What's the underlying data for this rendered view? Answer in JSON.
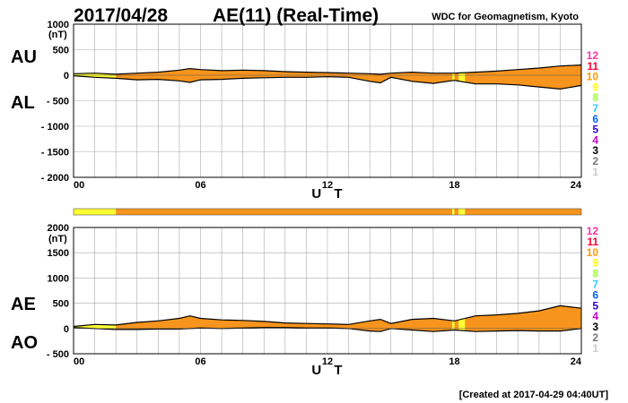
{
  "header": {
    "date": "2017/04/28",
    "title": "AE(11) (Real-Time)",
    "source": "WDC for Geomagnetism, Kyoto"
  },
  "footer": {
    "created": "[Created at 2017-04-29 04:40UT]"
  },
  "colors": {
    "fill_main": "#f7941d",
    "fill_quality10": "#ffff33",
    "outline": "#000000",
    "grid": "#aaaaaa"
  },
  "legend": [
    {
      "label": "12",
      "color": "#ff33aa"
    },
    {
      "label": "11",
      "color": "#ff0033"
    },
    {
      "label": "10",
      "color": "#ff9900"
    },
    {
      "label": "9",
      "color": "#ffff00"
    },
    {
      "label": "8",
      "color": "#99ff33"
    },
    {
      "label": "7",
      "color": "#33ccff"
    },
    {
      "label": "6",
      "color": "#0066ff"
    },
    {
      "label": "5",
      "color": "#3300cc"
    },
    {
      "label": "4",
      "color": "#cc00cc"
    },
    {
      "label": "3",
      "color": "#000000"
    },
    {
      "label": "2",
      "color": "#777777"
    },
    {
      "label": "1",
      "color": "#cccccc"
    }
  ],
  "quality_bar": {
    "segments": [
      {
        "start": 0,
        "end": 2.0,
        "level": "10"
      },
      {
        "start": 2.0,
        "end": 17.9,
        "level": "11"
      },
      {
        "start": 17.9,
        "end": 18.0,
        "level": "10"
      },
      {
        "start": 18.0,
        "end": 18.2,
        "level": "11"
      },
      {
        "start": 18.2,
        "end": 18.5,
        "level": "10"
      },
      {
        "start": 18.5,
        "end": 24.0,
        "level": "11"
      }
    ]
  },
  "chart_data": [
    {
      "type": "area",
      "name": "AU/AL",
      "upper_label": "AU",
      "lower_label": "AL",
      "unit_label": "(nT)",
      "xlabel": "U T",
      "xlim": [
        0,
        24
      ],
      "ylim": [
        -2000,
        1000
      ],
      "yticks": [
        1000,
        500,
        0,
        -500,
        -1000,
        -1500,
        -2000
      ],
      "ytick_labels": [
        "1000",
        "500",
        "0",
        "- 500",
        "- 1000",
        "- 1500",
        "- 2000"
      ],
      "xticks": [
        0,
        6,
        12,
        18,
        24
      ],
      "xtick_labels": [
        "00",
        "06",
        "12",
        "18",
        "24"
      ],
      "quality10_ranges": [
        [
          0,
          2.0
        ],
        [
          17.9,
          18.0
        ],
        [
          18.2,
          18.5
        ]
      ],
      "x": [
        0,
        1,
        2,
        3,
        4,
        5,
        5.5,
        6,
        7,
        8,
        9,
        10,
        11,
        12,
        13,
        14,
        14.5,
        15,
        16,
        17,
        18,
        19,
        20,
        21,
        22,
        23,
        24
      ],
      "upper": [
        30,
        40,
        20,
        40,
        60,
        100,
        130,
        110,
        90,
        100,
        90,
        70,
        60,
        50,
        40,
        30,
        20,
        40,
        60,
        40,
        40,
        60,
        80,
        110,
        140,
        180,
        200
      ],
      "lower": [
        -10,
        -40,
        -60,
        -90,
        -80,
        -110,
        -140,
        -90,
        -80,
        -60,
        -50,
        -40,
        -40,
        -30,
        -40,
        -120,
        -150,
        -40,
        -120,
        -160,
        -100,
        -170,
        -170,
        -190,
        -230,
        -270,
        -200
      ]
    },
    {
      "type": "area",
      "name": "AE/AO",
      "upper_label": "AE",
      "lower_label": "AO",
      "unit_label": "(nT)",
      "xlabel": "U T",
      "xlim": [
        0,
        24
      ],
      "ylim": [
        -500,
        2000
      ],
      "yticks": [
        2000,
        1500,
        1000,
        500,
        0,
        -500
      ],
      "ytick_labels": [
        "2000",
        "1500",
        "1000",
        "500",
        "0",
        "- 500"
      ],
      "xticks": [
        0,
        6,
        12,
        18,
        24
      ],
      "xtick_labels": [
        "00",
        "06",
        "12",
        "18",
        "24"
      ],
      "quality10_ranges": [
        [
          0,
          2.0
        ],
        [
          17.9,
          18.0
        ],
        [
          18.2,
          18.5
        ]
      ],
      "x": [
        0,
        1,
        2,
        3,
        4,
        5,
        5.5,
        6,
        7,
        8,
        9,
        10,
        11,
        12,
        13,
        14,
        14.5,
        15,
        16,
        17,
        18,
        19,
        20,
        21,
        22,
        23,
        24
      ],
      "upper": [
        40,
        80,
        70,
        120,
        150,
        200,
        250,
        200,
        170,
        160,
        140,
        110,
        100,
        90,
        80,
        150,
        180,
        100,
        180,
        200,
        150,
        250,
        270,
        300,
        350,
        450,
        400
      ],
      "lower": [
        20,
        0,
        -20,
        -20,
        -10,
        -10,
        0,
        10,
        0,
        10,
        20,
        20,
        10,
        10,
        0,
        -50,
        -60,
        0,
        -30,
        -60,
        -30,
        -60,
        -50,
        -40,
        -50,
        -50,
        0
      ]
    }
  ]
}
